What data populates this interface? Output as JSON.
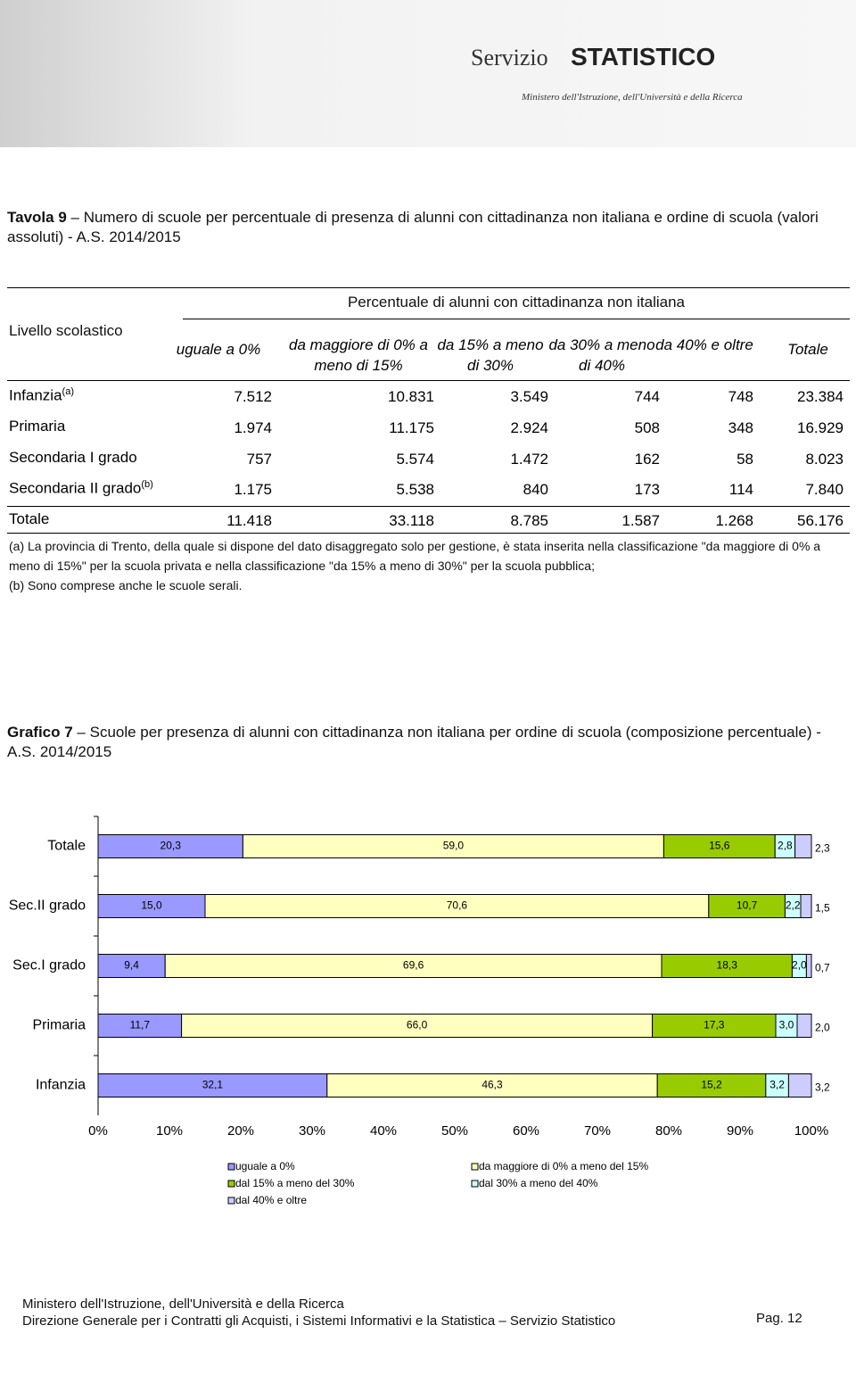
{
  "header": {
    "brand_small": "Servizio",
    "brand": "STATISTICO",
    "ministry": "Ministero dell'Istruzione, dell'Università e della Ricerca"
  },
  "table_title": {
    "label": "Tavola 9",
    "text": "Numero di scuole per percentuale di presenza di alunni con cittadinanza non italiana e ordine di scuola (valori assoluti) - A.S. 2014/2015"
  },
  "table": {
    "row_header": "Livello scolastico",
    "group_header": "Percentuale di alunni con cittadinanza non italiana",
    "columns": [
      "uguale a 0%",
      "da maggiore di 0% a meno di 15%",
      "da 15% a meno di 30%",
      "da 30% a meno di 40%",
      "da 40% e oltre",
      "Totale"
    ],
    "rows": [
      {
        "label": "Infanzia",
        "note": "(a)",
        "cells": [
          "7.512",
          "10.831",
          "3.549",
          "744",
          "748",
          "23.384"
        ]
      },
      {
        "label": "Primaria",
        "cells": [
          "1.974",
          "11.175",
          "2.924",
          "508",
          "348",
          "16.929"
        ]
      },
      {
        "label": "Secondaria I grado",
        "cells": [
          "757",
          "5.574",
          "1.472",
          "162",
          "58",
          "8.023"
        ]
      },
      {
        "label": "Secondaria II grado",
        "note": "(b)",
        "cells": [
          "1.175",
          "5.538",
          "840",
          "173",
          "114",
          "7.840"
        ]
      },
      {
        "label": "Totale",
        "cells": [
          "11.418",
          "33.118",
          "8.785",
          "1.587",
          "1.268",
          "56.176"
        ]
      }
    ]
  },
  "notes": [
    "(a) La provincia di Trento, della quale si dispone del dato disaggregato solo per gestione, è stata inserita nella classificazione \"da maggiore di 0% a meno di 15%\" per la scuola privata e nella classificazione \"da 15% a meno di 30%\" per la scuola pubblica;",
    "(b) Sono comprese anche le scuole serali."
  ],
  "chart_title": {
    "label": "Grafico 7",
    "text": "Scuole per presenza di alunni con cittadinanza non italiana per ordine di scuola (composizione percentuale) - A.S. 2014/2015"
  },
  "chart_data": {
    "type": "bar",
    "orientation": "horizontal",
    "stacked": true,
    "categories": [
      "Totale",
      "Sec.II grado",
      "Sec.I grado",
      "Primaria",
      "Infanzia"
    ],
    "series": [
      {
        "name": "uguale a 0%",
        "color": "#9999ff",
        "values": [
          20.3,
          15.0,
          9.4,
          11.7,
          32.1
        ],
        "value_labels": [
          "20,3",
          "15,0",
          "9,4",
          "11,7",
          "32,1"
        ]
      },
      {
        "name": "da maggiore di 0% a meno del 15%",
        "color": "#ffffc0",
        "values": [
          59.0,
          70.6,
          69.6,
          66.0,
          46.3
        ],
        "value_labels": [
          "59,0",
          "70,6",
          "69,6",
          "66,0",
          "46,3"
        ]
      },
      {
        "name": "dal 15% a meno del 30%",
        "color": "#99cc00",
        "values": [
          15.6,
          10.7,
          18.3,
          17.3,
          15.2
        ],
        "value_labels": [
          "15,6",
          "10,7",
          "18,3",
          "17,3",
          "15,2"
        ]
      },
      {
        "name": "dal 30% a meno del 40%",
        "color": "#ccffff",
        "values": [
          2.8,
          2.2,
          2.0,
          3.0,
          3.2
        ],
        "value_labels": [
          "2,8",
          "2,2",
          "2,0",
          "3,0",
          "3,2"
        ]
      },
      {
        "name": "dal 40% e oltre",
        "color": "#ccccff",
        "values": [
          2.3,
          1.5,
          0.7,
          2.0,
          3.2
        ],
        "value_labels": [
          "2,3",
          "1,5",
          "0,7",
          "2,0",
          "3,2"
        ]
      }
    ],
    "xlim": [
      0,
      100
    ],
    "xticks": [
      {
        "value": 0,
        "label": "0%"
      },
      {
        "value": 10,
        "label": "10%"
      },
      {
        "value": 20,
        "label": "20%"
      },
      {
        "value": 30,
        "label": "30%"
      },
      {
        "value": 40,
        "label": "40%"
      },
      {
        "value": 50,
        "label": "50%"
      },
      {
        "value": 60,
        "label": "60%"
      },
      {
        "value": 70,
        "label": "70%"
      },
      {
        "value": 80,
        "label": "80%"
      },
      {
        "value": 90,
        "label": "90%"
      },
      {
        "value": 100,
        "label": "100%"
      }
    ]
  },
  "footer": {
    "line1": "Ministero dell'Istruzione, dell'Università e della Ricerca",
    "line2": "Direzione Generale per i Contratti gli Acquisti, i Sistemi Informativi e la Statistica – Servizio Statistico",
    "page": "Pag. 12"
  }
}
